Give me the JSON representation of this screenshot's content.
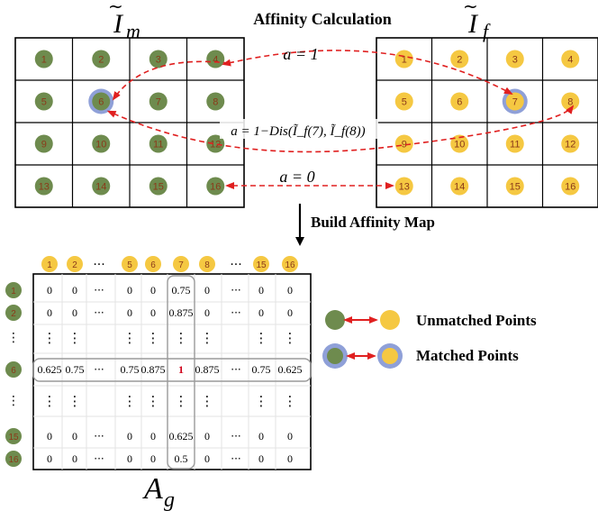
{
  "title": "Affinity Calculation",
  "left_grid": {
    "label_base": "I",
    "label_sub": "m",
    "cells": [
      "1",
      "2",
      "3",
      "4",
      "5",
      "6",
      "7",
      "8",
      "9",
      "10",
      "11",
      "12",
      "13",
      "14",
      "15",
      "16"
    ],
    "dot_color": "#6E8B4E",
    "matched_cell": "6"
  },
  "right_grid": {
    "label_base": "I",
    "label_sub": "f",
    "cells": [
      "1",
      "2",
      "3",
      "4",
      "5",
      "6",
      "7",
      "8",
      "9",
      "10",
      "11",
      "12",
      "13",
      "14",
      "15",
      "16"
    ],
    "dot_color": "#F5C842",
    "matched_cell": "7"
  },
  "arrows": {
    "a1": "a = 1",
    "a2": "a = 1−Dis(Ĩ_f(7), Ĩ_f(8))",
    "a3": "a = 0",
    "color": "#E02020"
  },
  "build_label": "Build Affinity Map",
  "matrix": {
    "col_headers": [
      "1",
      "2",
      "···",
      "5",
      "6",
      "7",
      "8",
      "···",
      "15",
      "16"
    ],
    "row_headers": [
      "1",
      "2",
      "⋮",
      "6",
      "⋮",
      "15",
      "16"
    ],
    "rows": [
      [
        "0",
        "0",
        "···",
        "0",
        "0",
        "0.75",
        "0",
        "···",
        "0",
        "0"
      ],
      [
        "0",
        "0",
        "···",
        "0",
        "0",
        "0.875",
        "0",
        "···",
        "0",
        "0"
      ],
      [
        "⋮",
        "⋮",
        "",
        "⋮",
        "⋮",
        "⋮",
        "⋮",
        "",
        "⋮",
        "⋮"
      ],
      [
        "0.625",
        "0.75",
        "···",
        "0.75",
        "0.875",
        "1",
        "0.875",
        "···",
        "0.75",
        "0.625"
      ],
      [
        "⋮",
        "⋮",
        "",
        "⋮",
        "⋮",
        "⋮",
        "⋮",
        "",
        "⋮",
        "⋮"
      ],
      [
        "0",
        "0",
        "···",
        "0",
        "0",
        "0.625",
        "0",
        "···",
        "0",
        "0"
      ],
      [
        "0",
        "0",
        "···",
        "0",
        "0",
        "0.5",
        "0",
        "···",
        "0",
        "0"
      ]
    ],
    "label_base": "A",
    "label_sub": "g",
    "highlight_color": "#D0021B"
  },
  "legend": {
    "unmatched": "Unmatched Points",
    "matched": "Matched Points",
    "ring_color": "#8FA0D8"
  },
  "colors": {
    "green": "#6E8B4E",
    "yellow": "#F5C842",
    "number_text": "#8B3A1A",
    "ring": "#8FA0D8",
    "red": "#E02020"
  }
}
